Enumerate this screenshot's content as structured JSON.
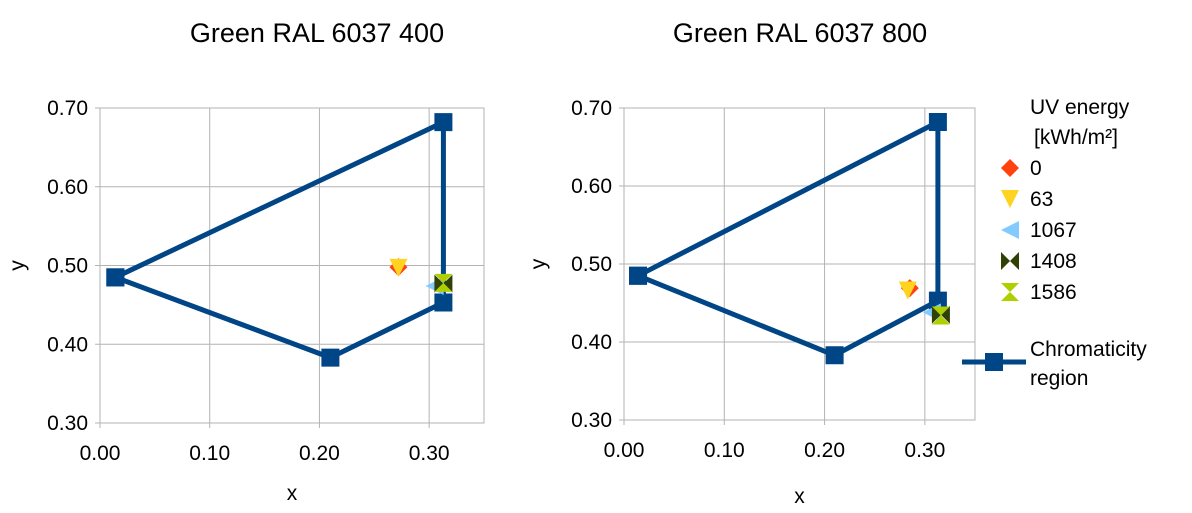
{
  "chart_data": [
    {
      "type": "scatter",
      "title": "Green RAL 6037 400",
      "xlabel": "x",
      "ylabel": "y",
      "xlim": [
        0.0,
        0.35
      ],
      "ylim": [
        0.3,
        0.7
      ],
      "xticks": [
        "0.00",
        "0.10",
        "0.20",
        "0.30"
      ],
      "yticks": [
        "0.30",
        "0.40",
        "0.50",
        "0.60",
        "0.70"
      ],
      "grid": true,
      "series": [
        {
          "name": "0",
          "marker": "diamond",
          "color": "#ff420e",
          "x": [
            0.272
          ],
          "y": [
            0.498
          ]
        },
        {
          "name": "63",
          "marker": "triangle-down",
          "color": "#ffd320",
          "x": [
            0.272
          ],
          "y": [
            0.497
          ]
        },
        {
          "name": "1067",
          "marker": "triangle-left",
          "color": "#83caff",
          "x": [
            0.305
          ],
          "y": [
            0.474
          ]
        },
        {
          "name": "1408",
          "marker": "bowtie",
          "color": "#314004",
          "x": [
            0.313
          ],
          "y": [
            0.477
          ]
        },
        {
          "name": "1586",
          "marker": "hourglass",
          "color": "#aecf00",
          "x": [
            0.313
          ],
          "y": [
            0.478
          ]
        },
        {
          "name": "Chromaticity region",
          "marker": "square",
          "color": "#004586",
          "line": true,
          "x": [
            0.014,
            0.313,
            0.313,
            0.21,
            0.014
          ],
          "y": [
            0.485,
            0.682,
            0.453,
            0.383,
            0.485
          ]
        }
      ]
    },
    {
      "type": "scatter",
      "title": "Green RAL 6037 800",
      "xlabel": "x",
      "ylabel": "y",
      "xlim": [
        0.0,
        0.35
      ],
      "ylim": [
        0.3,
        0.7
      ],
      "xticks": [
        "0.00",
        "0.10",
        "0.20",
        "0.30"
      ],
      "yticks": [
        "0.30",
        "0.40",
        "0.50",
        "0.60",
        "0.70"
      ],
      "grid": true,
      "legend_title": [
        "UV energy",
        "[kWh/m²]"
      ],
      "legend_position": "right",
      "series": [
        {
          "name": "0",
          "marker": "diamond",
          "color": "#ff420e",
          "x": [
            0.285
          ],
          "y": [
            0.469
          ]
        },
        {
          "name": "63",
          "marker": "triangle-down",
          "color": "#ffd320",
          "x": [
            0.283
          ],
          "y": [
            0.466
          ]
        },
        {
          "name": "1067",
          "marker": "triangle-left",
          "color": "#83caff",
          "x": [
            0.307
          ],
          "y": [
            0.438
          ]
        },
        {
          "name": "1408",
          "marker": "bowtie",
          "color": "#314004",
          "x": [
            0.316
          ],
          "y": [
            0.435
          ]
        },
        {
          "name": "1586",
          "marker": "hourglass",
          "color": "#aecf00",
          "x": [
            0.316
          ],
          "y": [
            0.434
          ]
        },
        {
          "name": "Chromaticity region",
          "marker": "square",
          "color": "#004586",
          "line": true,
          "x": [
            0.014,
            0.313,
            0.313,
            0.21,
            0.014
          ],
          "y": [
            0.485,
            0.682,
            0.453,
            0.383,
            0.485
          ]
        }
      ]
    }
  ]
}
